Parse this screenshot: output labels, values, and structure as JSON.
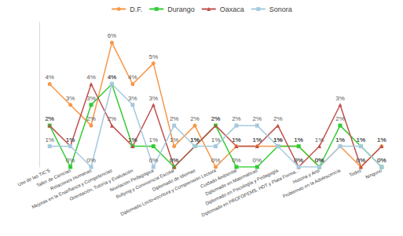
{
  "chart_data": {
    "type": "line",
    "categories": [
      "Uso de las TIC'S",
      "Taller de Ciencias",
      "Relaciones Humanas",
      "Mejoras en la Enseñanza y Competencias",
      "Orientación, Tutoría y Evaluación",
      "Nivelación Pedagógica",
      "Bullying y Convivencia Escolar",
      "Diplomado de Idiomas",
      "Diplomado Lecto-escritura y Comprensión Lectora",
      "Cuidado Ambiental",
      "Diplomado en Matemáticas",
      "Diplomado en Psicología y Pedagogía",
      "Diplomado en PROFOPEMS, HDT y Plata Forma...",
      "Historia y Arte",
      "Problemas en la Adolescencia",
      "Todos",
      "Ninguno"
    ],
    "series": [
      {
        "name": "D.F.",
        "color": "#f79646",
        "marker": "circle",
        "values": [
          4,
          3,
          2,
          6,
          4,
          5,
          1,
          2,
          0,
          1,
          1,
          1,
          1,
          0,
          1,
          0,
          1
        ],
        "value_labels": [
          "4%",
          "3%",
          "2%",
          "6%",
          "4%",
          "5%",
          "1%",
          "2%",
          "0%",
          "1%",
          "1%",
          "1%",
          "1%",
          "0%",
          "1%",
          "0%",
          "1%"
        ]
      },
      {
        "name": "Durango",
        "color": "#33cc33",
        "marker": "rect",
        "values": [
          2,
          0,
          3,
          4,
          1,
          1,
          0,
          1,
          2,
          0,
          0,
          1,
          1,
          0,
          2,
          1,
          0
        ],
        "value_labels": [
          "2%",
          "0%",
          "3%",
          "4%",
          "1%",
          "1%",
          "0%",
          "1%",
          "2%",
          "0%",
          "0%",
          "1%",
          "1%",
          "0%",
          "2%",
          "1%",
          "0%"
        ]
      },
      {
        "name": "Oaxaca",
        "color": "#c0504d",
        "marker": "triangle",
        "values": [
          2,
          1,
          4,
          2,
          1,
          3,
          0,
          1,
          2,
          1,
          1,
          2,
          0,
          1,
          3,
          0,
          1
        ],
        "value_labels": [
          "2%",
          "1%",
          "4%",
          "2%",
          "1%",
          "3%",
          "0%",
          "1%",
          "2%",
          "1%",
          "1%",
          "2%",
          "0%",
          "1%",
          "3%",
          "0%",
          "1%"
        ]
      },
      {
        "name": "Sonora",
        "color": "#a5c9de",
        "marker": "rect",
        "values": [
          1,
          1,
          0,
          4,
          3,
          0,
          2,
          1,
          1,
          2,
          2,
          1,
          0,
          0,
          1,
          1,
          0
        ],
        "value_labels": [
          "1%",
          "1%",
          "0%",
          "4%",
          "3%",
          "0%",
          "2%",
          "1%",
          "1%",
          "2%",
          "2%",
          "1%",
          "0%",
          "0%",
          "1%",
          "1%",
          "0%"
        ]
      }
    ],
    "ylim": [
      0,
      7
    ],
    "grid": false,
    "legend": "top",
    "data_labels": true,
    "tick_labels": "x"
  }
}
